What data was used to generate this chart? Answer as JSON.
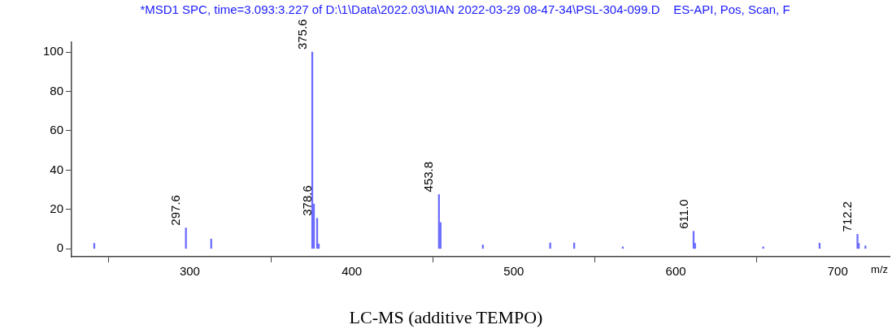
{
  "chart_data": {
    "type": "bar",
    "title": "*MSD1 SPC, time=3.093:3.227 of D:\\1\\Data\\2022.03\\JIAN 2022-03-29 08-47-34\\PSL-304-099.D    ES-API, Pos, Scan, F",
    "xlabel": "m/z",
    "x": [
      241,
      297.6,
      313.2,
      375.6,
      376.6,
      378.6,
      379.6,
      453.8,
      454.8,
      480.9,
      522.5,
      537.3,
      567.3,
      611.0,
      611.9,
      654,
      688.8,
      712.2,
      713.0,
      717.1
    ],
    "values": [
      2.8,
      10.6,
      5,
      100,
      22.8,
      15.5,
      2.5,
      27.6,
      13.4,
      2,
      3,
      3,
      1,
      8.9,
      2.8,
      1,
      2.9,
      7.4,
      2.8,
      1.5
    ],
    "color": "#6b6bff",
    "xlim": [
      227,
      732
    ],
    "xticks": [
      300,
      400,
      500,
      600,
      700
    ],
    "ylim": [
      -4,
      105
    ],
    "yticks": [
      0,
      20,
      40,
      60,
      80,
      100
    ],
    "grid": false,
    "legend": false,
    "annotations": [
      {
        "text": "297.6",
        "x": 297.6,
        "y": 10.6
      },
      {
        "text": "375.6",
        "x": 375.6,
        "y": 100
      },
      {
        "text": "378.6",
        "x": 378.6,
        "y": 15.5
      },
      {
        "text": "453.8",
        "x": 453.8,
        "y": 27.6
      },
      {
        "text": "611.0",
        "x": 611.0,
        "y": 8.9
      },
      {
        "text": "712.2",
        "x": 712.2,
        "y": 7.4
      },
      "LC-MS (additive TEMPO)"
    ]
  }
}
